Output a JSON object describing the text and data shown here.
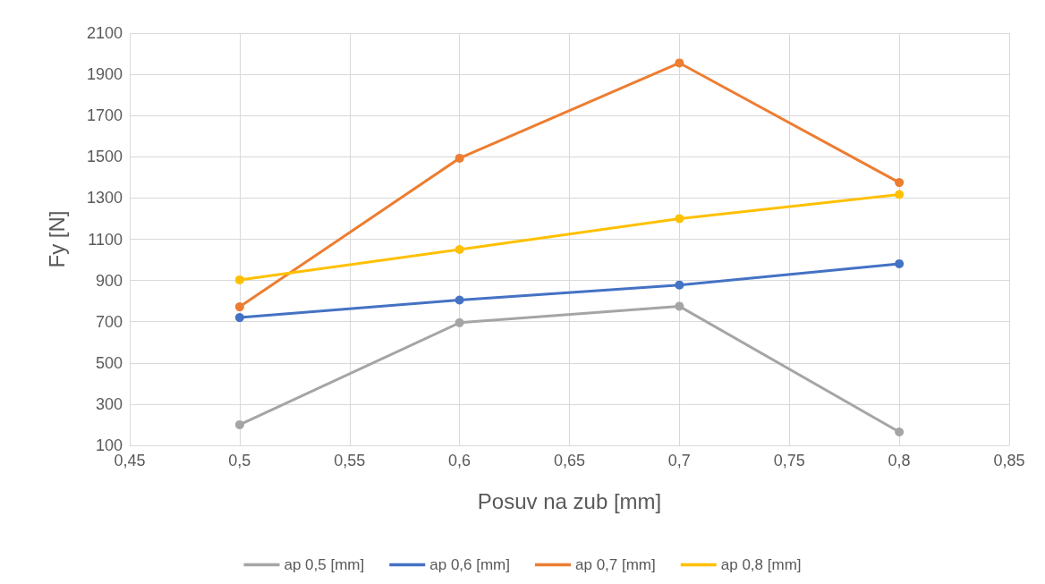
{
  "chart_data": {
    "type": "line",
    "xlabel": "Posuv na zub [mm]",
    "ylabel": "Fy [N]",
    "x": [
      0.5,
      0.6,
      0.7,
      0.8
    ],
    "series": [
      {
        "name": "ap 0,5 [mm]",
        "color": "#a5a5a5",
        "values": [
          200,
          695,
          775,
          165
        ]
      },
      {
        "name": "ap 0,6 [mm]",
        "color": "#4472c4",
        "values": [
          720,
          805,
          878,
          981
        ]
      },
      {
        "name": "ap 0,7 [mm]",
        "color": "#ed7d31",
        "values": [
          772,
          1493,
          1955,
          1375
        ]
      },
      {
        "name": "ap 0,8 [mm]",
        "color": "#ffc000",
        "values": [
          903,
          1050,
          1200,
          1317
        ]
      }
    ],
    "xlim": [
      0.45,
      0.85
    ],
    "xticks": [
      {
        "value": 0.45,
        "label": "0,45"
      },
      {
        "value": 0.5,
        "label": "0,5"
      },
      {
        "value": 0.55,
        "label": "0,55"
      },
      {
        "value": 0.6,
        "label": "0,6"
      },
      {
        "value": 0.65,
        "label": "0,65"
      },
      {
        "value": 0.7,
        "label": "0,7"
      },
      {
        "value": 0.75,
        "label": "0,75"
      },
      {
        "value": 0.8,
        "label": "0,8"
      },
      {
        "value": 0.85,
        "label": "0,85"
      }
    ],
    "ylim": [
      100,
      2100
    ],
    "yticks": [
      100,
      300,
      500,
      700,
      900,
      1100,
      1300,
      1500,
      1700,
      1900,
      2100
    ],
    "grid": true,
    "legend": "bottom",
    "marker": "circle",
    "line_style": "solid"
  }
}
